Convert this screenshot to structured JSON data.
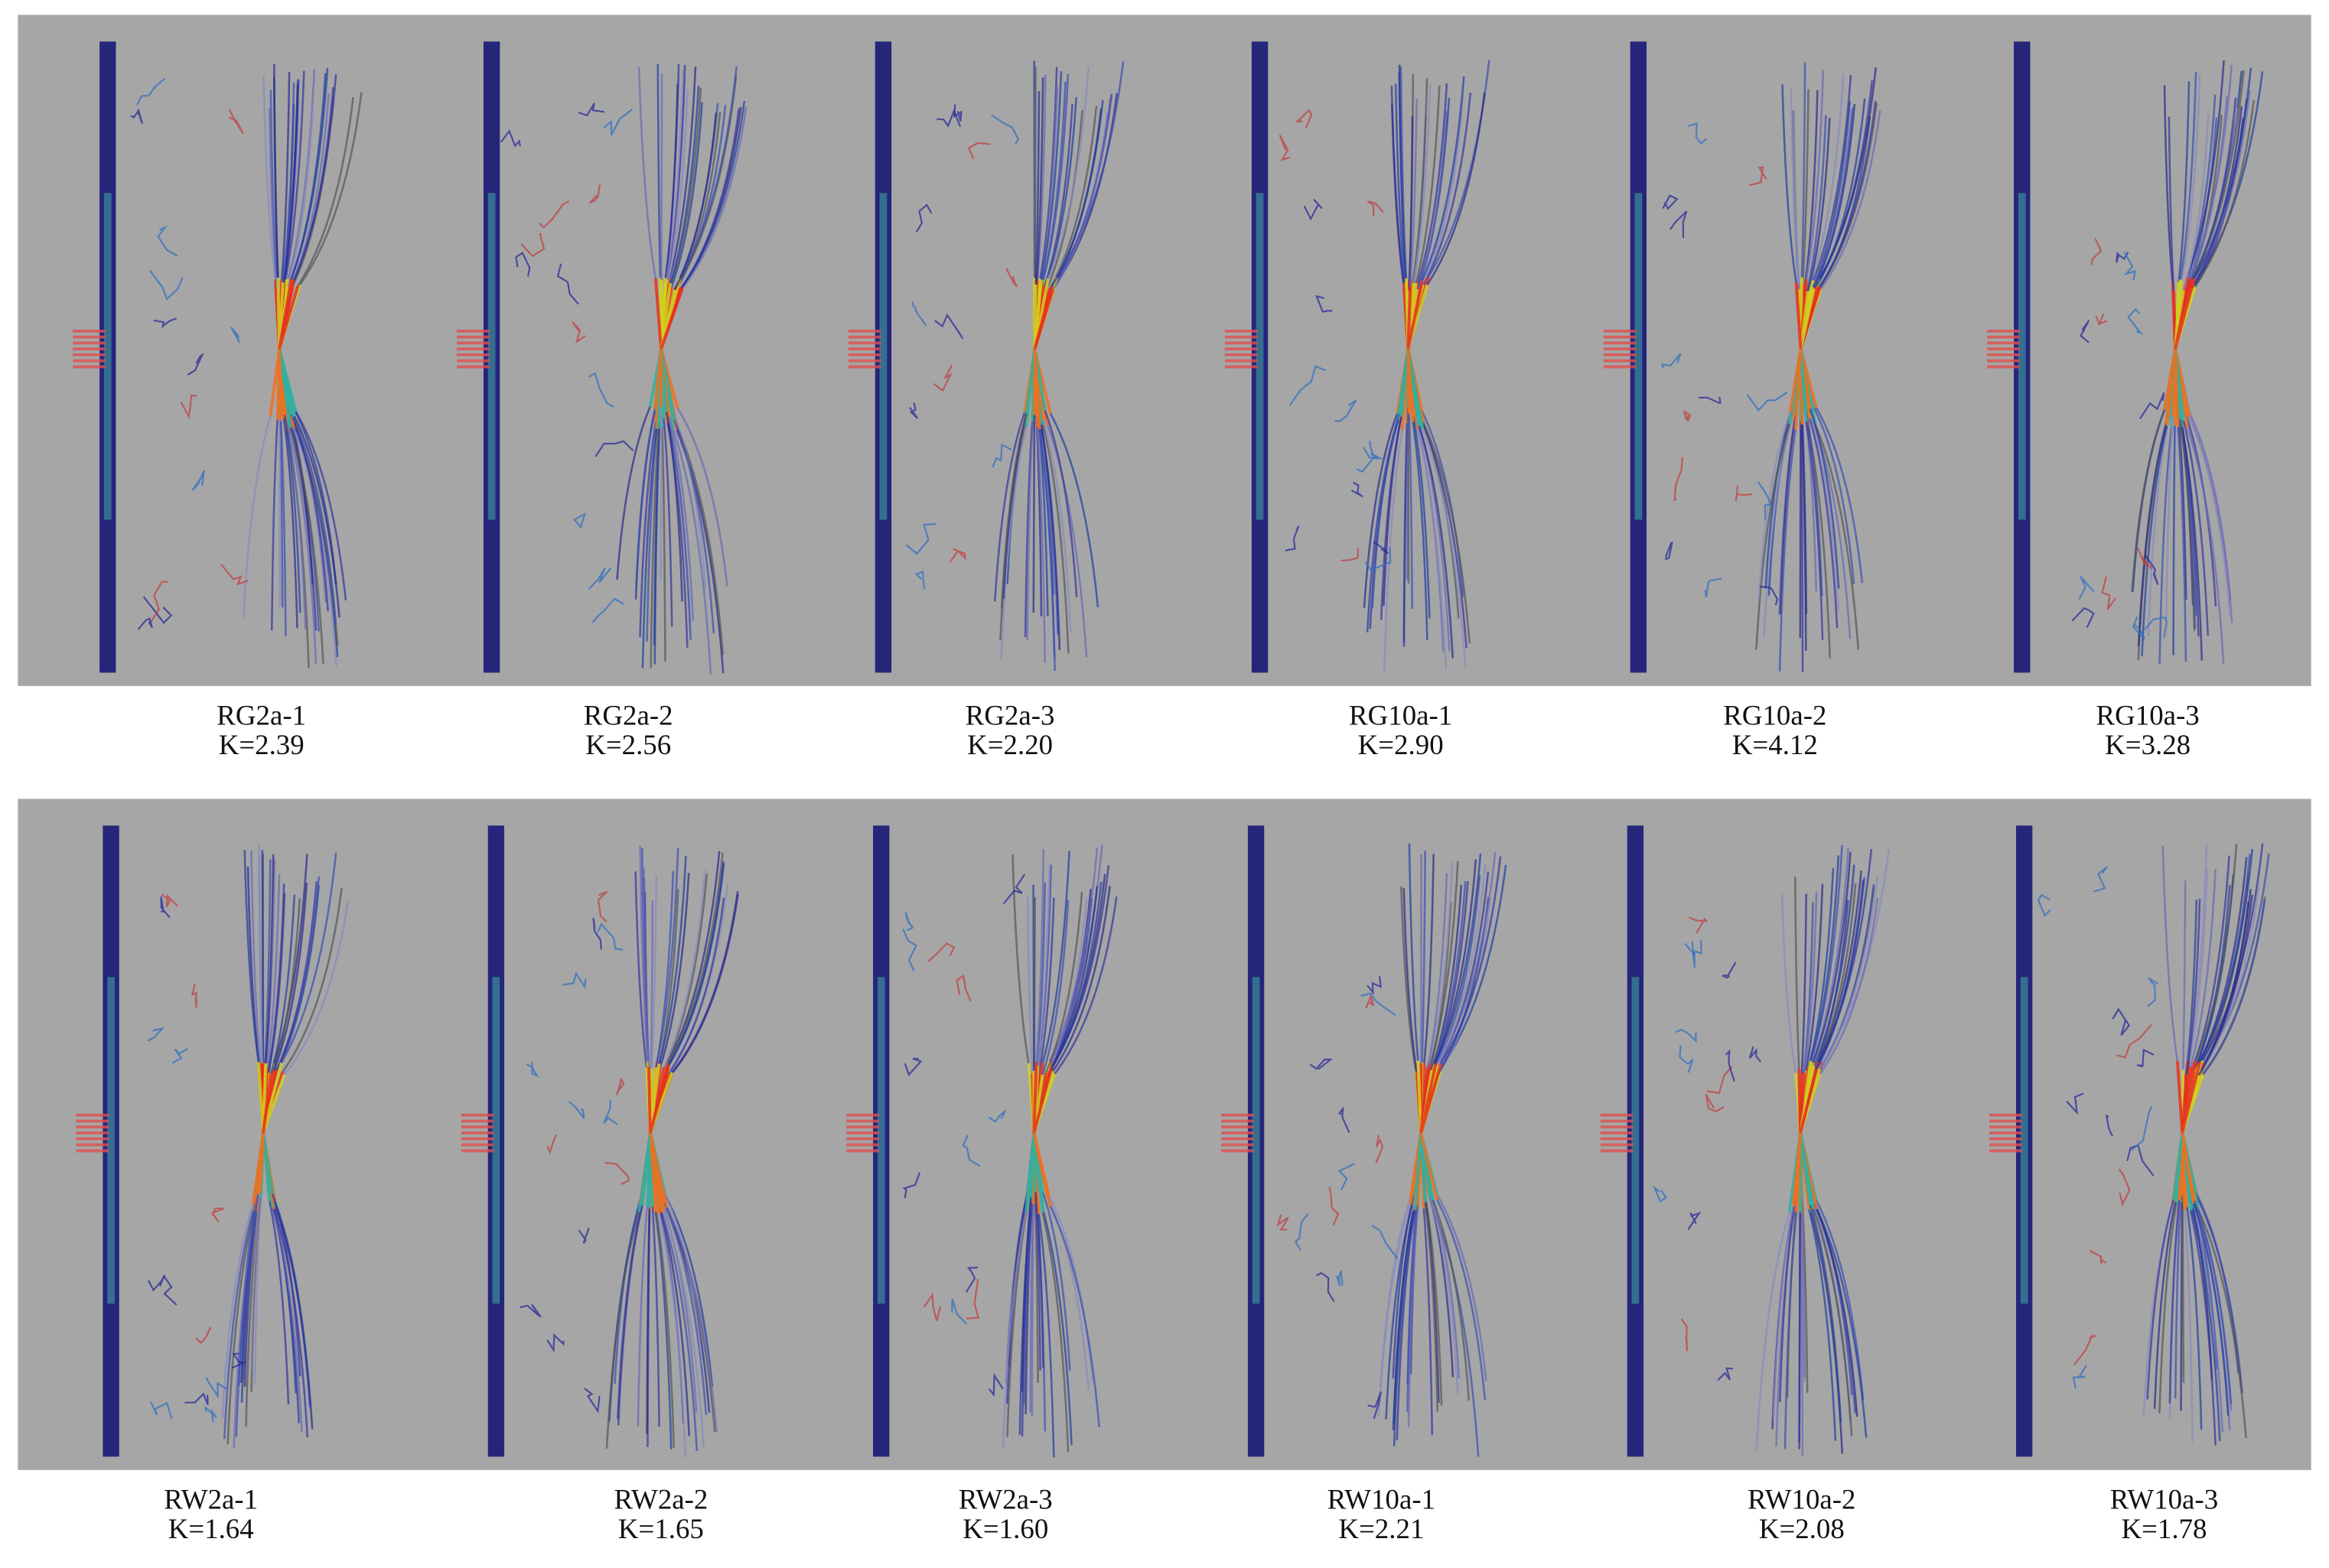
{
  "panels": [
    {
      "name": "RG2a-1",
      "k": "K=2.39"
    },
    {
      "name": "RG2a-2",
      "k": "K=2.56"
    },
    {
      "name": "RG2a-3",
      "k": "K=2.20"
    },
    {
      "name": "RG10a-1",
      "k": "K=2.90"
    },
    {
      "name": "RG10a-2",
      "k": "K=4.12"
    },
    {
      "name": "RG10a-3",
      "k": "K=3.28"
    },
    {
      "name": "RW2a-1",
      "k": "K=1.64"
    },
    {
      "name": "RW2a-2",
      "k": "K=1.65"
    },
    {
      "name": "RW2a-3",
      "k": "K=1.60"
    },
    {
      "name": "RW10a-1",
      "k": "K=2.21"
    },
    {
      "name": "RW10a-2",
      "k": "K=2.08"
    },
    {
      "name": "RW10a-3",
      "k": "K=1.78"
    }
  ]
}
